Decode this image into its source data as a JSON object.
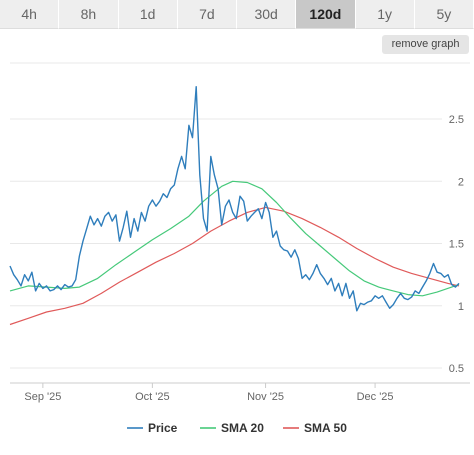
{
  "tabs": [
    {
      "label": "4h",
      "active": false
    },
    {
      "label": "8h",
      "active": false
    },
    {
      "label": "1d",
      "active": false
    },
    {
      "label": "7d",
      "active": false
    },
    {
      "label": "30d",
      "active": false
    },
    {
      "label": "120d",
      "active": true
    },
    {
      "label": "1y",
      "active": false
    },
    {
      "label": "5y",
      "active": false
    }
  ],
  "remove_graph_label": "remove graph",
  "chart_data": {
    "type": "line",
    "title": "",
    "xlabel": "",
    "ylabel": "",
    "ylim": [
      0.5,
      2.5
    ],
    "yticks": [
      0.5,
      1,
      1.5,
      2,
      2.5
    ],
    "xlim": [
      "2025-08-23",
      "2025-12-27"
    ],
    "xticks": [
      {
        "label": "Sep '25",
        "date": "2025-09-01"
      },
      {
        "label": "Oct '25",
        "date": "2025-10-01"
      },
      {
        "label": "Nov '25",
        "date": "2025-11-01"
      },
      {
        "label": "Dec '25",
        "date": "2025-12-01"
      }
    ],
    "grid": true,
    "legend_position": "bottom",
    "series": [
      {
        "name": "Price",
        "color": "#2f7ebc",
        "points": [
          [
            "2025-08-23",
            1.32
          ],
          [
            "2025-08-24",
            1.25
          ],
          [
            "2025-08-25",
            1.21
          ],
          [
            "2025-08-26",
            1.16
          ],
          [
            "2025-08-27",
            1.25
          ],
          [
            "2025-08-28",
            1.2
          ],
          [
            "2025-08-29",
            1.27
          ],
          [
            "2025-08-30",
            1.12
          ],
          [
            "2025-08-31",
            1.18
          ],
          [
            "2025-09-01",
            1.14
          ],
          [
            "2025-09-02",
            1.16
          ],
          [
            "2025-09-03",
            1.12
          ],
          [
            "2025-09-04",
            1.13
          ],
          [
            "2025-09-05",
            1.16
          ],
          [
            "2025-09-06",
            1.13
          ],
          [
            "2025-09-07",
            1.17
          ],
          [
            "2025-09-08",
            1.15
          ],
          [
            "2025-09-09",
            1.16
          ],
          [
            "2025-09-10",
            1.21
          ],
          [
            "2025-09-11",
            1.4
          ],
          [
            "2025-09-12",
            1.52
          ],
          [
            "2025-09-13",
            1.62
          ],
          [
            "2025-09-14",
            1.72
          ],
          [
            "2025-09-15",
            1.65
          ],
          [
            "2025-09-16",
            1.7
          ],
          [
            "2025-09-17",
            1.64
          ],
          [
            "2025-09-18",
            1.72
          ],
          [
            "2025-09-19",
            1.75
          ],
          [
            "2025-09-20",
            1.68
          ],
          [
            "2025-09-21",
            1.73
          ],
          [
            "2025-09-22",
            1.52
          ],
          [
            "2025-09-23",
            1.63
          ],
          [
            "2025-09-24",
            1.76
          ],
          [
            "2025-09-25",
            1.55
          ],
          [
            "2025-09-26",
            1.7
          ],
          [
            "2025-09-27",
            1.6
          ],
          [
            "2025-09-28",
            1.75
          ],
          [
            "2025-09-29",
            1.68
          ],
          [
            "2025-09-30",
            1.8
          ],
          [
            "2025-10-01",
            1.85
          ],
          [
            "2025-10-02",
            1.8
          ],
          [
            "2025-10-03",
            1.84
          ],
          [
            "2025-10-04",
            1.9
          ],
          [
            "2025-10-05",
            1.87
          ],
          [
            "2025-10-06",
            1.94
          ],
          [
            "2025-10-07",
            1.97
          ],
          [
            "2025-10-08",
            2.1
          ],
          [
            "2025-10-09",
            2.2
          ],
          [
            "2025-10-10",
            2.1
          ],
          [
            "2025-10-11",
            2.45
          ],
          [
            "2025-10-12",
            2.35
          ],
          [
            "2025-10-13",
            2.76
          ],
          [
            "2025-10-14",
            2.05
          ],
          [
            "2025-10-15",
            1.7
          ],
          [
            "2025-10-16",
            1.6
          ],
          [
            "2025-10-17",
            2.2
          ],
          [
            "2025-10-18",
            2.05
          ],
          [
            "2025-10-19",
            1.94
          ],
          [
            "2025-10-20",
            1.65
          ],
          [
            "2025-10-21",
            1.8
          ],
          [
            "2025-10-22",
            1.85
          ],
          [
            "2025-10-23",
            1.75
          ],
          [
            "2025-10-24",
            1.7
          ],
          [
            "2025-10-25",
            1.88
          ],
          [
            "2025-10-26",
            1.84
          ],
          [
            "2025-10-27",
            1.68
          ],
          [
            "2025-10-28",
            1.72
          ],
          [
            "2025-10-29",
            1.75
          ],
          [
            "2025-10-30",
            1.78
          ],
          [
            "2025-10-31",
            1.7
          ],
          [
            "2025-11-01",
            1.83
          ],
          [
            "2025-11-02",
            1.75
          ],
          [
            "2025-11-03",
            1.55
          ],
          [
            "2025-11-04",
            1.6
          ],
          [
            "2025-11-05",
            1.48
          ],
          [
            "2025-11-06",
            1.45
          ],
          [
            "2025-11-07",
            1.44
          ],
          [
            "2025-11-08",
            1.39
          ],
          [
            "2025-11-09",
            1.45
          ],
          [
            "2025-11-10",
            1.38
          ],
          [
            "2025-11-11",
            1.22
          ],
          [
            "2025-11-12",
            1.25
          ],
          [
            "2025-11-13",
            1.21
          ],
          [
            "2025-11-14",
            1.26
          ],
          [
            "2025-11-15",
            1.33
          ],
          [
            "2025-11-16",
            1.26
          ],
          [
            "2025-11-17",
            1.22
          ],
          [
            "2025-11-18",
            1.17
          ],
          [
            "2025-11-19",
            1.22
          ],
          [
            "2025-11-20",
            1.12
          ],
          [
            "2025-11-21",
            1.18
          ],
          [
            "2025-11-22",
            1.08
          ],
          [
            "2025-11-23",
            1.18
          ],
          [
            "2025-11-24",
            1.06
          ],
          [
            "2025-11-25",
            1.12
          ],
          [
            "2025-11-26",
            0.96
          ],
          [
            "2025-11-27",
            1.02
          ],
          [
            "2025-11-28",
            1.01
          ],
          [
            "2025-11-29",
            1.03
          ],
          [
            "2025-11-30",
            1.04
          ],
          [
            "2025-12-01",
            1.08
          ],
          [
            "2025-12-02",
            1.06
          ],
          [
            "2025-12-03",
            1.08
          ],
          [
            "2025-12-04",
            1.03
          ],
          [
            "2025-12-05",
            0.98
          ],
          [
            "2025-12-06",
            1.01
          ],
          [
            "2025-12-07",
            1.06
          ],
          [
            "2025-12-08",
            1.1
          ],
          [
            "2025-12-09",
            1.06
          ],
          [
            "2025-12-10",
            1.05
          ],
          [
            "2025-12-11",
            1.07
          ],
          [
            "2025-12-12",
            1.12
          ],
          [
            "2025-12-13",
            1.1
          ],
          [
            "2025-12-14",
            1.15
          ],
          [
            "2025-12-15",
            1.2
          ],
          [
            "2025-12-16",
            1.26
          ],
          [
            "2025-12-17",
            1.34
          ],
          [
            "2025-12-18",
            1.27
          ],
          [
            "2025-12-19",
            1.26
          ],
          [
            "2025-12-20",
            1.23
          ],
          [
            "2025-12-21",
            1.25
          ],
          [
            "2025-12-22",
            1.17
          ],
          [
            "2025-12-23",
            1.15
          ],
          [
            "2025-12-24",
            1.18
          ]
        ]
      },
      {
        "name": "SMA 20",
        "color": "#46c97a",
        "points": [
          [
            "2025-08-23",
            1.12
          ],
          [
            "2025-08-28",
            1.16
          ],
          [
            "2025-09-02",
            1.15
          ],
          [
            "2025-09-07",
            1.14
          ],
          [
            "2025-09-11",
            1.15
          ],
          [
            "2025-09-16",
            1.22
          ],
          [
            "2025-09-21",
            1.33
          ],
          [
            "2025-09-26",
            1.43
          ],
          [
            "2025-10-01",
            1.53
          ],
          [
            "2025-10-06",
            1.62
          ],
          [
            "2025-10-11",
            1.72
          ],
          [
            "2025-10-15",
            1.84
          ],
          [
            "2025-10-20",
            1.96
          ],
          [
            "2025-10-23",
            2.0
          ],
          [
            "2025-10-27",
            1.99
          ],
          [
            "2025-10-31",
            1.94
          ],
          [
            "2025-11-04",
            1.83
          ],
          [
            "2025-11-08",
            1.7
          ],
          [
            "2025-11-12",
            1.58
          ],
          [
            "2025-11-16",
            1.48
          ],
          [
            "2025-11-20",
            1.38
          ],
          [
            "2025-11-24",
            1.28
          ],
          [
            "2025-11-28",
            1.2
          ],
          [
            "2025-12-02",
            1.15
          ],
          [
            "2025-12-06",
            1.12
          ],
          [
            "2025-12-10",
            1.09
          ],
          [
            "2025-12-14",
            1.08
          ],
          [
            "2025-12-18",
            1.11
          ],
          [
            "2025-12-22",
            1.15
          ],
          [
            "2025-12-24",
            1.17
          ]
        ]
      },
      {
        "name": "SMA 50",
        "color": "#e05a5a",
        "points": [
          [
            "2025-08-23",
            0.85
          ],
          [
            "2025-08-28",
            0.9
          ],
          [
            "2025-09-02",
            0.95
          ],
          [
            "2025-09-07",
            0.98
          ],
          [
            "2025-09-12",
            1.02
          ],
          [
            "2025-09-17",
            1.1
          ],
          [
            "2025-09-22",
            1.19
          ],
          [
            "2025-09-27",
            1.27
          ],
          [
            "2025-10-02",
            1.35
          ],
          [
            "2025-10-07",
            1.42
          ],
          [
            "2025-10-12",
            1.5
          ],
          [
            "2025-10-17",
            1.6
          ],
          [
            "2025-10-22",
            1.68
          ],
          [
            "2025-10-27",
            1.75
          ],
          [
            "2025-11-01",
            1.79
          ],
          [
            "2025-11-06",
            1.76
          ],
          [
            "2025-11-11",
            1.7
          ],
          [
            "2025-11-16",
            1.63
          ],
          [
            "2025-11-21",
            1.55
          ],
          [
            "2025-11-26",
            1.46
          ],
          [
            "2025-12-01",
            1.38
          ],
          [
            "2025-12-06",
            1.31
          ],
          [
            "2025-12-11",
            1.26
          ],
          [
            "2025-12-16",
            1.22
          ],
          [
            "2025-12-21",
            1.18
          ],
          [
            "2025-12-24",
            1.16
          ]
        ]
      }
    ]
  }
}
